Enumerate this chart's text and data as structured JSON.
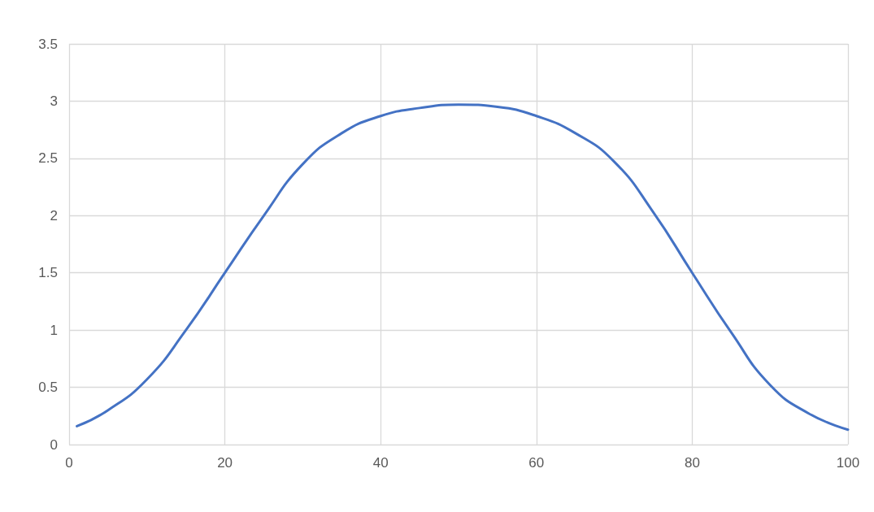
{
  "chart_data": {
    "type": "line",
    "x": [
      1,
      5,
      10,
      15,
      20,
      25,
      30,
      35,
      40,
      45,
      50,
      55,
      60,
      65,
      70,
      75,
      80,
      85,
      90,
      95,
      100
    ],
    "series": [
      {
        "color": "#4472c4",
        "values": [
          0.16,
          0.3,
          0.57,
          1.0,
          1.5,
          2.0,
          2.45,
          2.72,
          2.87,
          2.94,
          2.97,
          2.95,
          2.87,
          2.72,
          2.47,
          2.03,
          1.5,
          0.98,
          0.52,
          0.27,
          0.13
        ]
      }
    ],
    "xlim": [
      0,
      100
    ],
    "xticks": [
      0,
      20,
      40,
      60,
      80,
      100
    ],
    "ylim": [
      0,
      3.5
    ],
    "yticks": [
      0,
      0.5,
      1,
      1.5,
      2,
      2.5,
      3,
      3.5
    ],
    "grid": true,
    "marker": "none",
    "line_style": "solid"
  }
}
